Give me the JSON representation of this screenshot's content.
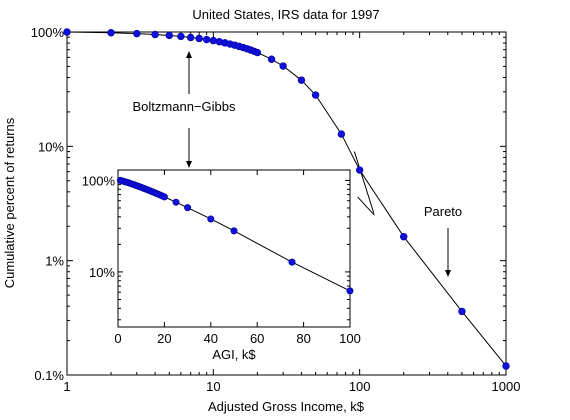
{
  "chart_data": [
    {
      "type": "scatter",
      "title": "United States, IRS data for 1997",
      "xlabel": "Adjusted Gross Income, k$",
      "ylabel": "Cumulative percent of returns",
      "xscale": "log",
      "yscale": "log",
      "xlim": [
        1,
        1000
      ],
      "ylim": [
        0.1,
        100
      ],
      "xticks": [
        1,
        10,
        100,
        1000
      ],
      "xtick_labels": [
        "1",
        "10",
        "100",
        "1000"
      ],
      "yticks": [
        0.1,
        1,
        10,
        100
      ],
      "ytick_labels": [
        "0.1%",
        "1%",
        "10%",
        "100%"
      ],
      "grid": false,
      "series": [
        {
          "x": [
            1,
            2,
            3,
            4,
            5,
            6,
            7,
            8,
            9,
            10,
            11,
            12,
            13,
            14,
            15,
            16,
            17,
            18,
            19,
            20,
            25,
            30,
            40,
            50,
            75,
            100,
            200,
            500,
            1000
          ],
          "y": [
            100,
            98.5,
            96.8,
            95.1,
            93.3,
            91.5,
            89.6,
            87.8,
            85.9,
            84.1,
            82.2,
            80.4,
            78.5,
            76.7,
            74.9,
            73.1,
            71.3,
            69.6,
            67.8,
            66.1,
            57.8,
            50.4,
            37.9,
            28.1,
            12.8,
            6.2,
            1.62,
            0.36,
            0.12
          ]
        }
      ],
      "annotations": [
        {
          "text": "Boltzmann−Gibbs"
        },
        {
          "text": "Pareto"
        }
      ]
    },
    {
      "type": "scatter",
      "title": "",
      "xlabel": "AGI, k$",
      "ylabel": "",
      "xscale": "linear",
      "yscale": "log",
      "xlim": [
        0,
        100
      ],
      "ylim": [
        2.5,
        130
      ],
      "xticks": [
        0,
        20,
        40,
        60,
        80,
        100
      ],
      "xtick_labels": [
        "0",
        "20",
        "40",
        "60",
        "80",
        "100"
      ],
      "yticks": [
        10,
        100
      ],
      "ytick_labels": [
        "10%",
        "100%"
      ],
      "grid": false,
      "series": [
        {
          "x": [
            1,
            2,
            3,
            4,
            5,
            6,
            7,
            8,
            9,
            10,
            11,
            12,
            13,
            14,
            15,
            16,
            17,
            18,
            19,
            20,
            25,
            30,
            40,
            50,
            75,
            100
          ],
          "y": [
            100,
            98.5,
            96.8,
            95.1,
            93.3,
            91.5,
            89.6,
            87.8,
            85.9,
            84.1,
            82.2,
            80.4,
            78.5,
            76.7,
            74.9,
            73.1,
            71.3,
            69.6,
            67.8,
            66.1,
            57.8,
            50.4,
            37.9,
            28.1,
            12.8,
            6.2
          ]
        }
      ]
    }
  ]
}
